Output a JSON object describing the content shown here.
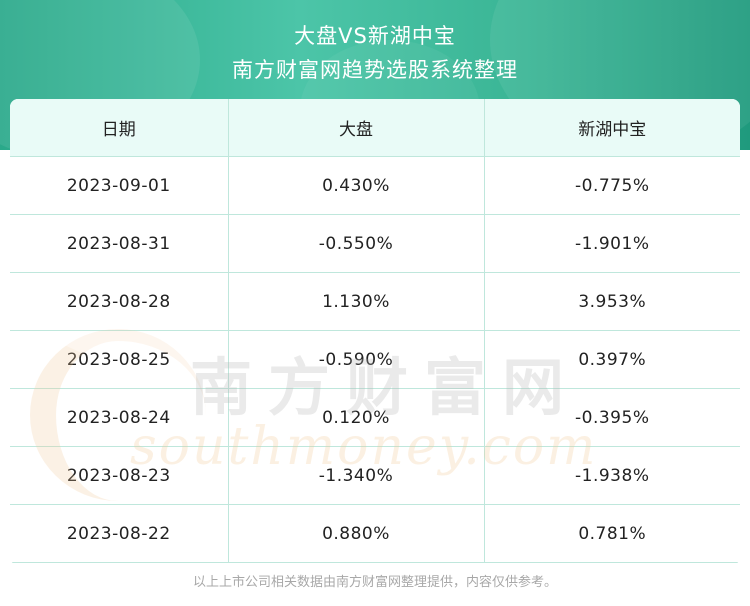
{
  "header": {
    "title": "大盘VS新湖中宝",
    "subtitle": "南方财富网趋势选股系统整理"
  },
  "table": {
    "columns": [
      "日期",
      "大盘",
      "新湖中宝"
    ],
    "rows": [
      [
        "2023-09-01",
        "0.430%",
        "-0.775%"
      ],
      [
        "2023-08-31",
        "-0.550%",
        "-1.901%"
      ],
      [
        "2023-08-28",
        "1.130%",
        "3.953%"
      ],
      [
        "2023-08-25",
        "-0.590%",
        "0.397%"
      ],
      [
        "2023-08-24",
        "0.120%",
        "-0.395%"
      ],
      [
        "2023-08-23",
        "-1.340%",
        "-1.938%"
      ],
      [
        "2023-08-22",
        "0.880%",
        "0.781%"
      ]
    ]
  },
  "watermark": {
    "cn": "南方财富网",
    "en": "southmoney.com"
  },
  "footer": {
    "note": "以上上市公司相关数据由南方财富网整理提供，内容仅供参考。"
  },
  "colors": {
    "banner": "#3ab595",
    "header_bg": "#e9fbf7",
    "grid": "#bfe7dc",
    "text": "#222222",
    "footer_text": "#a8a8a8"
  }
}
